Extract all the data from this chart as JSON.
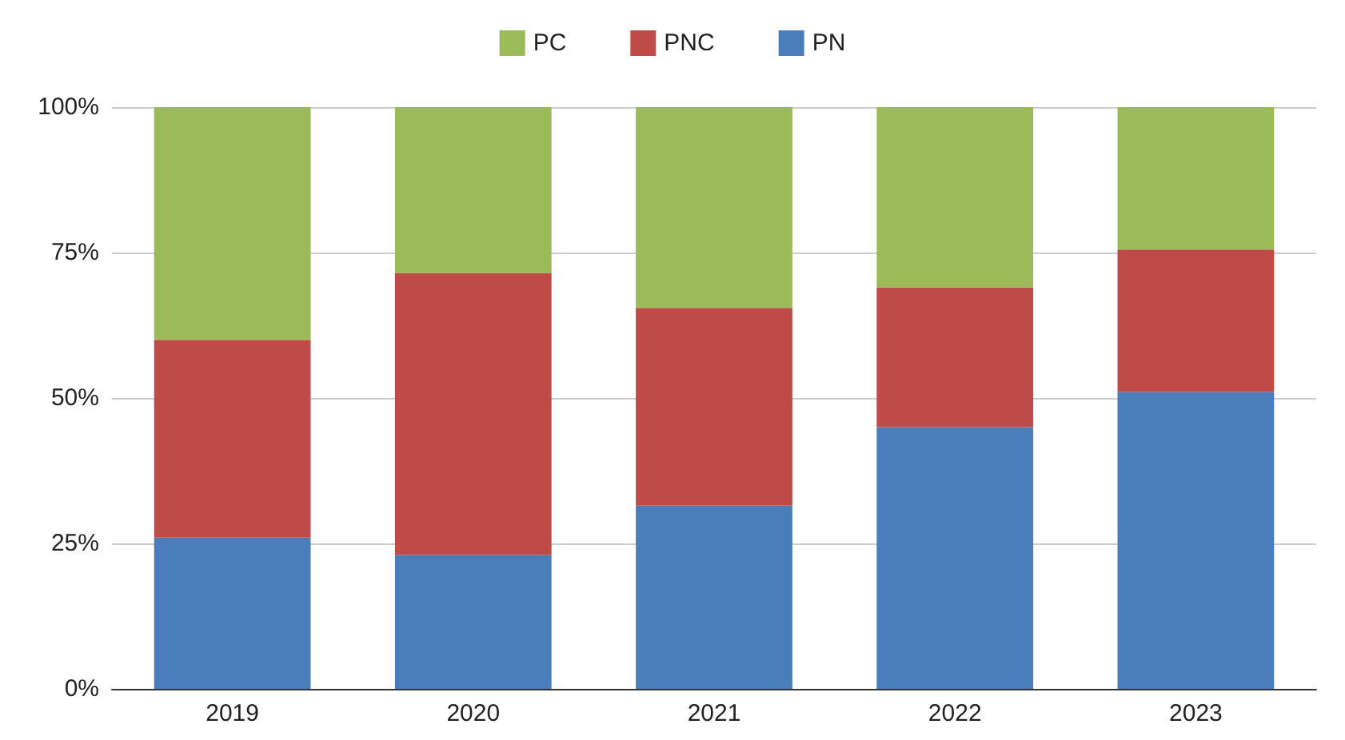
{
  "chart_data": {
    "type": "bar",
    "stacked": true,
    "categories": [
      "2019",
      "2020",
      "2021",
      "2022",
      "2023"
    ],
    "series": [
      {
        "name": "PN",
        "color": "#4a7ebb",
        "values": [
          26,
          23,
          31.5,
          45,
          51
        ]
      },
      {
        "name": "PNC",
        "color": "#be4b48",
        "values": [
          34,
          48.5,
          34,
          24,
          24.5
        ]
      },
      {
        "name": "PC",
        "color": "#9bbb59",
        "values": [
          40,
          28.5,
          34.5,
          31,
          24.5
        ]
      }
    ],
    "ylim": [
      0,
      100
    ],
    "yticks": [
      {
        "value": 0,
        "label": "0%"
      },
      {
        "value": 25,
        "label": "25%"
      },
      {
        "value": 50,
        "label": "50%"
      },
      {
        "value": 75,
        "label": "75%"
      },
      {
        "value": 100,
        "label": "100%"
      }
    ],
    "grid": "y",
    "legend": "top"
  }
}
